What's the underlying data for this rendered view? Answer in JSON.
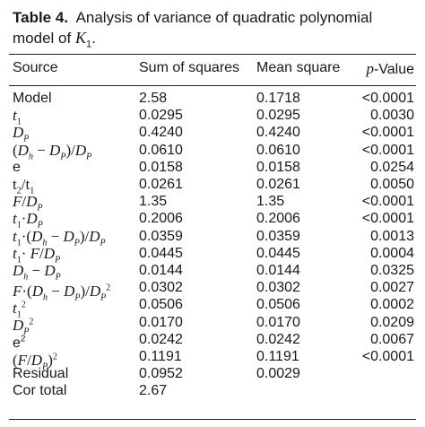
{
  "caption": {
    "label": "Table 4.",
    "text": "Analysis of variance of quadratic polynomial model of K",
    "symbol_subscript": "1",
    "end": "."
  },
  "columns": [
    "Source",
    "Sum of squares",
    "Mean square",
    "p-Value"
  ],
  "rows": [
    {
      "source": "Model",
      "ss": "2.58",
      "ms": "0.1718",
      "p": "<0.0001"
    },
    {
      "source": "t1",
      "ss": "0.0295",
      "ms": "0.0295",
      "p": "0.0030"
    },
    {
      "source": "DP",
      "ss": "0.4240",
      "ms": "0.4240",
      "p": "<0.0001"
    },
    {
      "source": "(Dh − DP)/DP",
      "ss": "0.0610",
      "ms": "0.0610",
      "p": "<0.0001"
    },
    {
      "source": "e",
      "ss": "0.0158",
      "ms": "0.0158",
      "p": "0.0254"
    },
    {
      "source": "t2/t1",
      "ss": "0.0261",
      "ms": "0.0261",
      "p": "0.0050"
    },
    {
      "source": "F/DP",
      "ss": "1.35",
      "ms": "1.35",
      "p": "<0.0001"
    },
    {
      "source": "t1·DP",
      "ss": "0.2006",
      "ms": "0.2006",
      "p": "<0.0001"
    },
    {
      "source": "t1·(Dh − DP)/DP",
      "ss": "0.0359",
      "ms": "0.0359",
      "p": "0.0013"
    },
    {
      "source": "t1· F/DP",
      "ss": "0.0445",
      "ms": "0.0445",
      "p": "0.0004"
    },
    {
      "source": "Dh − DP",
      "ss": "0.0144",
      "ms": "0.0144",
      "p": "0.0325"
    },
    {
      "source": "F·(Dh − DP)/DP2",
      "ss": "0.0302",
      "ms": "0.0302",
      "p": "0.0027"
    },
    {
      "source": "t12",
      "ss": "0.0506",
      "ms": "0.0506",
      "p": "0.0002"
    },
    {
      "source": "DP2",
      "ss": "0.0170",
      "ms": "0.0170",
      "p": "0.0209"
    },
    {
      "source": "e2",
      "ss": "0.0242",
      "ms": "0.0242",
      "p": "0.0067"
    },
    {
      "source": "(F/DP)2",
      "ss": "0.1191",
      "ms": "0.1191",
      "p": "<0.0001"
    },
    {
      "source": "Residual",
      "ss": "0.0952",
      "ms": "0.0029",
      "p": ""
    },
    {
      "source": "Cor total",
      "ss": "2.67",
      "ms": "",
      "p": ""
    }
  ]
}
